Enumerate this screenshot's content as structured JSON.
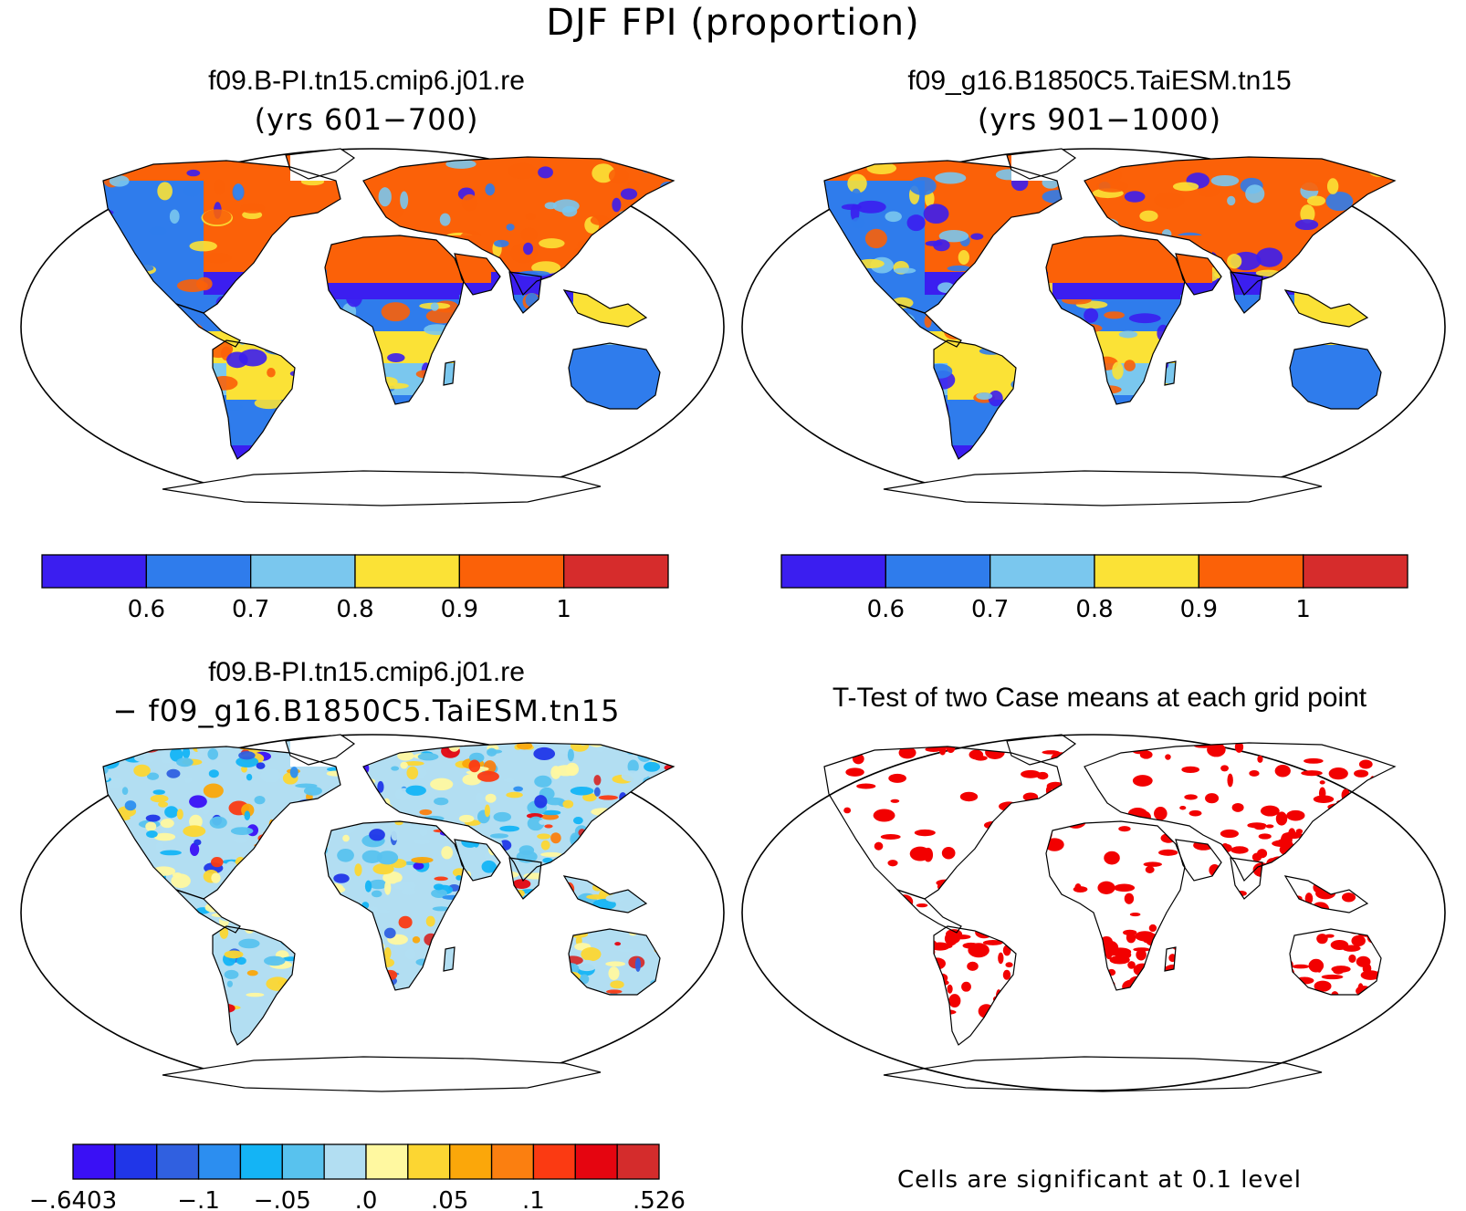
{
  "title": "DJF FPI (proportion)",
  "panels": [
    {
      "id": "p1",
      "title": "f09.B-PI.tn15.cmip6.j01.re",
      "subtitle": "(yrs 601−700)"
    },
    {
      "id": "p2",
      "title": "f09_g16.B1850C5.TaiESM.tn15",
      "subtitle": "(yrs 901−1000)"
    },
    {
      "id": "p3",
      "title": "f09.B-PI.tn15.cmip6.j01.re",
      "subtitle": "− f09_g16.B1850C5.TaiESM.tn15"
    },
    {
      "id": "p4",
      "title": "T-Test of two Case means at each grid point",
      "subtitle": ""
    }
  ],
  "colorbars": {
    "main": {
      "colors": [
        "#3b1ef0",
        "#2f7cec",
        "#7ac7ee",
        "#fbe236",
        "#fb6108",
        "#d62c2c"
      ],
      "labels": [
        "0.6",
        "0.7",
        "0.8",
        "0.9",
        "1"
      ]
    },
    "diff": {
      "colors": [
        "#3a10f5",
        "#2036e8",
        "#3060e0",
        "#2c8ef0",
        "#14b4f5",
        "#58c2ee",
        "#b2def2",
        "#fff8a0",
        "#fcd632",
        "#fba70a",
        "#fb7f10",
        "#fb3a12",
        "#e50510",
        "#d42c2c"
      ],
      "labels": [
        "−.6403",
        "−.1",
        "−.05",
        ".0",
        ".05",
        ".1",
        ".526"
      ]
    }
  },
  "significance_note": "Cells are significant at 0.1 level",
  "colors": {
    "ocean": "#ffffff",
    "coast": "#000000",
    "significant": "#f20000"
  }
}
